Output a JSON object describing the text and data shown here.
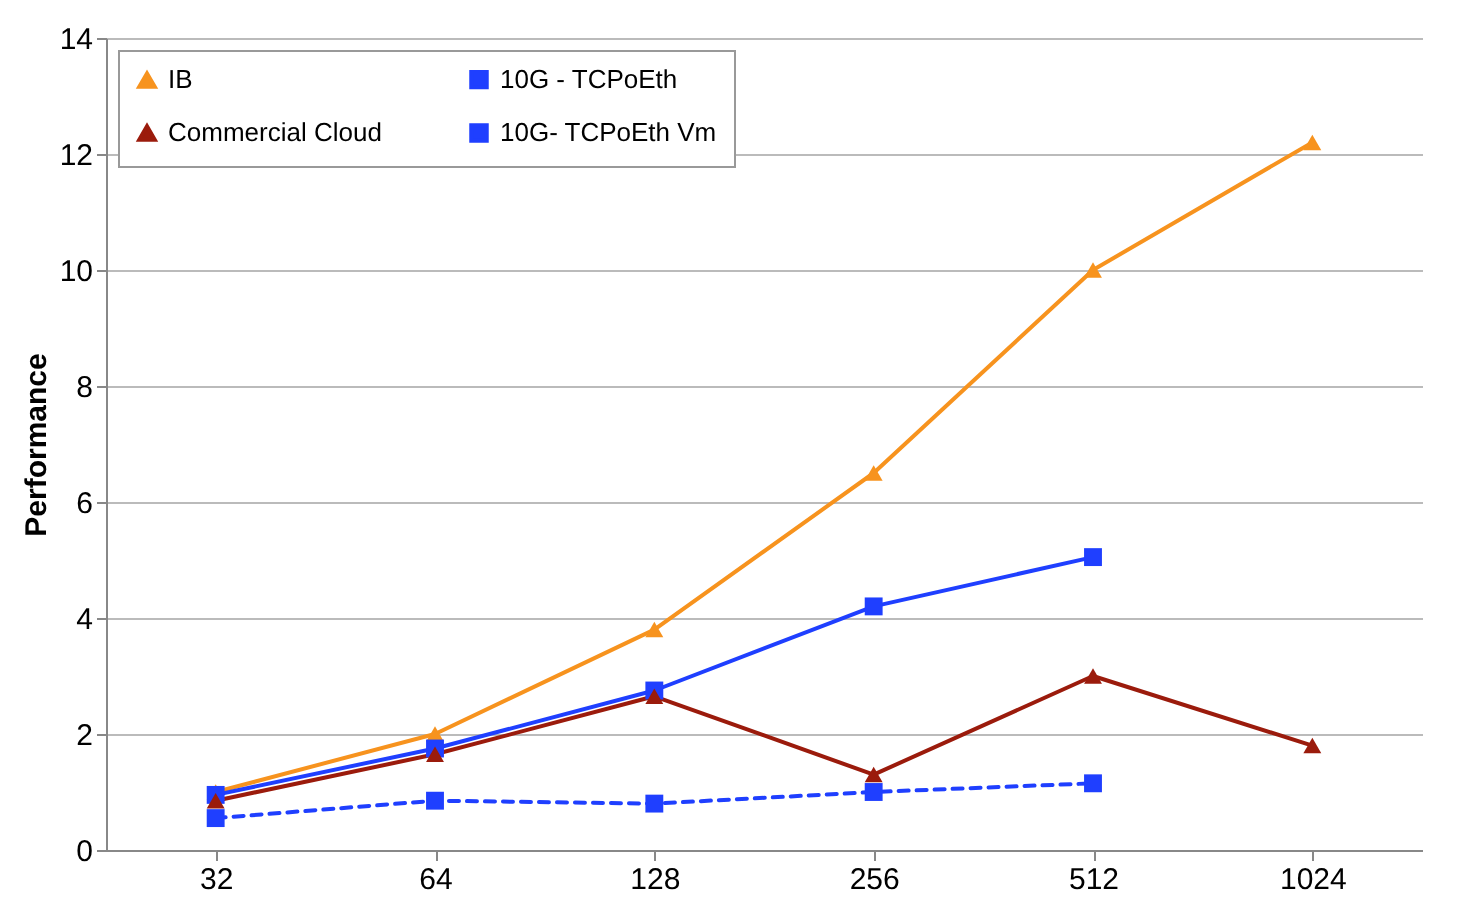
{
  "chart_data": {
    "type": "line",
    "ylabel": "Performance",
    "categories": [
      "32",
      "64",
      "128",
      "256",
      "512",
      "1024"
    ],
    "ylim": [
      0,
      14
    ],
    "yticks": [
      0,
      2,
      4,
      6,
      8,
      10,
      12,
      14
    ],
    "grid": "y",
    "legend": "top left",
    "series": [
      {
        "name": "IB",
        "color": "#f7931e",
        "marker": "triangle",
        "line_style": "solid",
        "values": [
          1.0,
          2.0,
          3.8,
          6.5,
          10.0,
          12.2
        ]
      },
      {
        "name": "10G - TCPoEth",
        "color": "#1f3fff",
        "marker": "square",
        "line_style": "solid",
        "values": [
          0.95,
          1.75,
          2.75,
          4.2,
          5.05,
          null
        ]
      },
      {
        "name": "Commercial Cloud",
        "color": "#9b1b0c",
        "marker": "triangle",
        "line_style": "solid",
        "values": [
          0.85,
          1.65,
          2.65,
          1.3,
          3.0,
          1.8
        ]
      },
      {
        "name": "10G- TCPoEth Vm",
        "color": "#1f3fff",
        "marker": "square",
        "line_style": "dashed",
        "values": [
          0.55,
          0.85,
          0.8,
          1.0,
          1.15,
          null
        ]
      }
    ]
  }
}
